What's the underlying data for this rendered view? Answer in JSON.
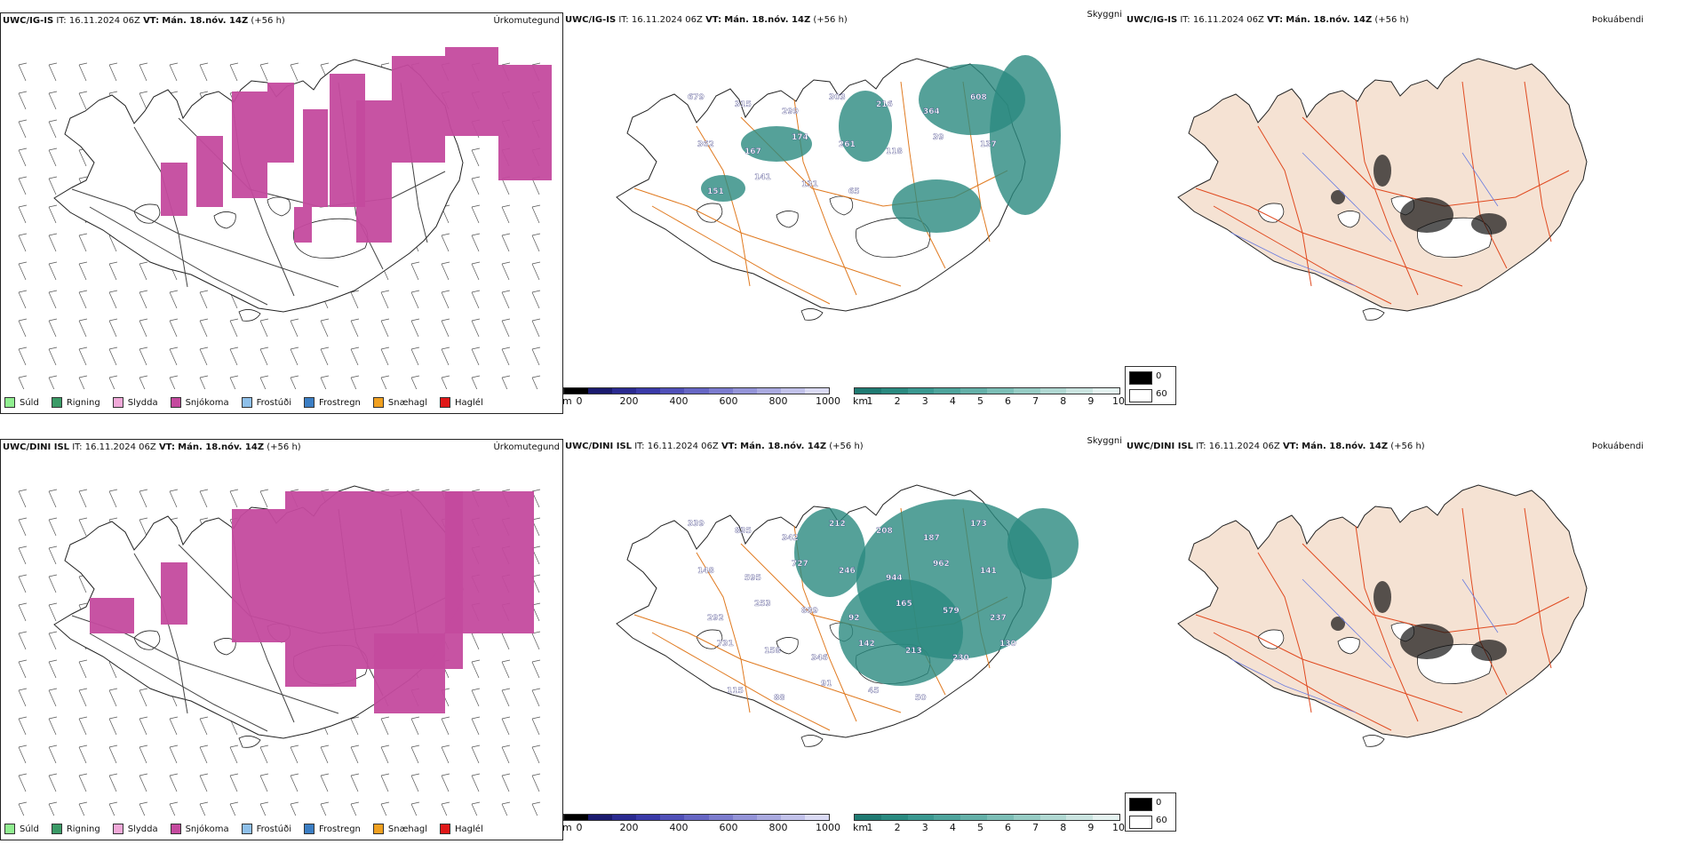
{
  "panels": {
    "p1": {
      "model": "UWC/IG-IS",
      "it_label": "IT:",
      "it": "16.11.2024 06Z",
      "vt_label": "VT:",
      "vt": "Mán. 18.nóv. 14Z",
      "lead": "(+56 h)",
      "title": "Úrkomutegund"
    },
    "p2": {
      "model": "UWC/IG-IS",
      "it_label": "IT:",
      "it": "16.11.2024 06Z",
      "vt_label": "VT:",
      "vt": "Mán. 18.nóv. 14Z",
      "lead": "(+56 h)",
      "title": "Skyggni"
    },
    "p3": {
      "model": "UWC/IG-IS",
      "it_label": "IT:",
      "it": "16.11.2024 06Z",
      "vt_label": "VT:",
      "vt": "Mán. 18.nóv. 14Z",
      "lead": "(+56 h)",
      "title": "Þokuábendi"
    },
    "p4": {
      "model": "UWC/DINI ISL",
      "it_label": "IT:",
      "it": "16.11.2024 06Z",
      "vt_label": "VT:",
      "vt": "Mán. 18.nóv. 14Z",
      "lead": "(+56 h)",
      "title": "Úrkomutegund"
    },
    "p5": {
      "model": "UWC/DINI ISL",
      "it_label": "IT:",
      "it": "16.11.2024 06Z",
      "vt_label": "VT:",
      "vt": "Mán. 18.nóv. 14Z",
      "lead": "(+56 h)",
      "title": "Skyggni"
    },
    "p6": {
      "model": "UWC/DINI ISL",
      "it_label": "IT:",
      "it": "16.11.2024 06Z",
      "vt_label": "VT:",
      "vt": "Mán. 18.nóv. 14Z",
      "lead": "(+56 h)",
      "title": "Þokuábendi"
    }
  },
  "precip_legend": [
    {
      "label": "Súld",
      "color": "#90ee90"
    },
    {
      "label": "Rigning",
      "color": "#3a9a66"
    },
    {
      "label": "Slydda",
      "color": "#f0a8d8"
    },
    {
      "label": "Snjókoma",
      "color": "#c44a9e"
    },
    {
      "label": "Frostúði",
      "color": "#8ec0ea"
    },
    {
      "label": "Frostregn",
      "color": "#3b7ec4"
    },
    {
      "label": "Snæhagl",
      "color": "#f0a020"
    },
    {
      "label": "Haglél",
      "color": "#e01818"
    }
  ],
  "elev_colorbar": {
    "unit": "m",
    "ticks": [
      "0",
      "200",
      "400",
      "600",
      "800",
      "1000"
    ],
    "colors": [
      "#000000",
      "#1a1a6e",
      "#2a2a90",
      "#3a3aa8",
      "#5050b8",
      "#6666c4",
      "#7c7cce",
      "#9494d8",
      "#aaaae0",
      "#c2c2ea",
      "#dadaf4"
    ]
  },
  "vis_colorbar": {
    "unit": "km",
    "ticks": [
      "1",
      "2",
      "3",
      "4",
      "5",
      "6",
      "7",
      "8",
      "9",
      "10"
    ],
    "colors": [
      "#1f7a72",
      "#2a8a80",
      "#3a9890",
      "#4ea49c",
      "#64b0a8",
      "#7cbeb6",
      "#96ccc4",
      "#b0d8d2",
      "#cae4e0",
      "#e4f2f0"
    ]
  },
  "fog_legend": {
    "items": [
      {
        "label": "0",
        "color": "#000000"
      },
      {
        "label": "60",
        "color": "#ffffff"
      }
    ]
  },
  "height_labels_top": [
    "679",
    "315",
    "299",
    "303",
    "216",
    "364",
    "608",
    "362",
    "167",
    "174",
    "261",
    "118",
    "39",
    "137",
    "151",
    "141",
    "131",
    "65"
  ],
  "height_labels_bottom": [
    "339",
    "835",
    "342",
    "212",
    "208",
    "187",
    "173",
    "148",
    "595",
    "727",
    "246",
    "944",
    "962",
    "141",
    "292",
    "253",
    "889",
    "92",
    "165",
    "579",
    "237",
    "731",
    "158",
    "346",
    "142",
    "213",
    "230",
    "130",
    "115",
    "88",
    "91",
    "45",
    "50"
  ]
}
